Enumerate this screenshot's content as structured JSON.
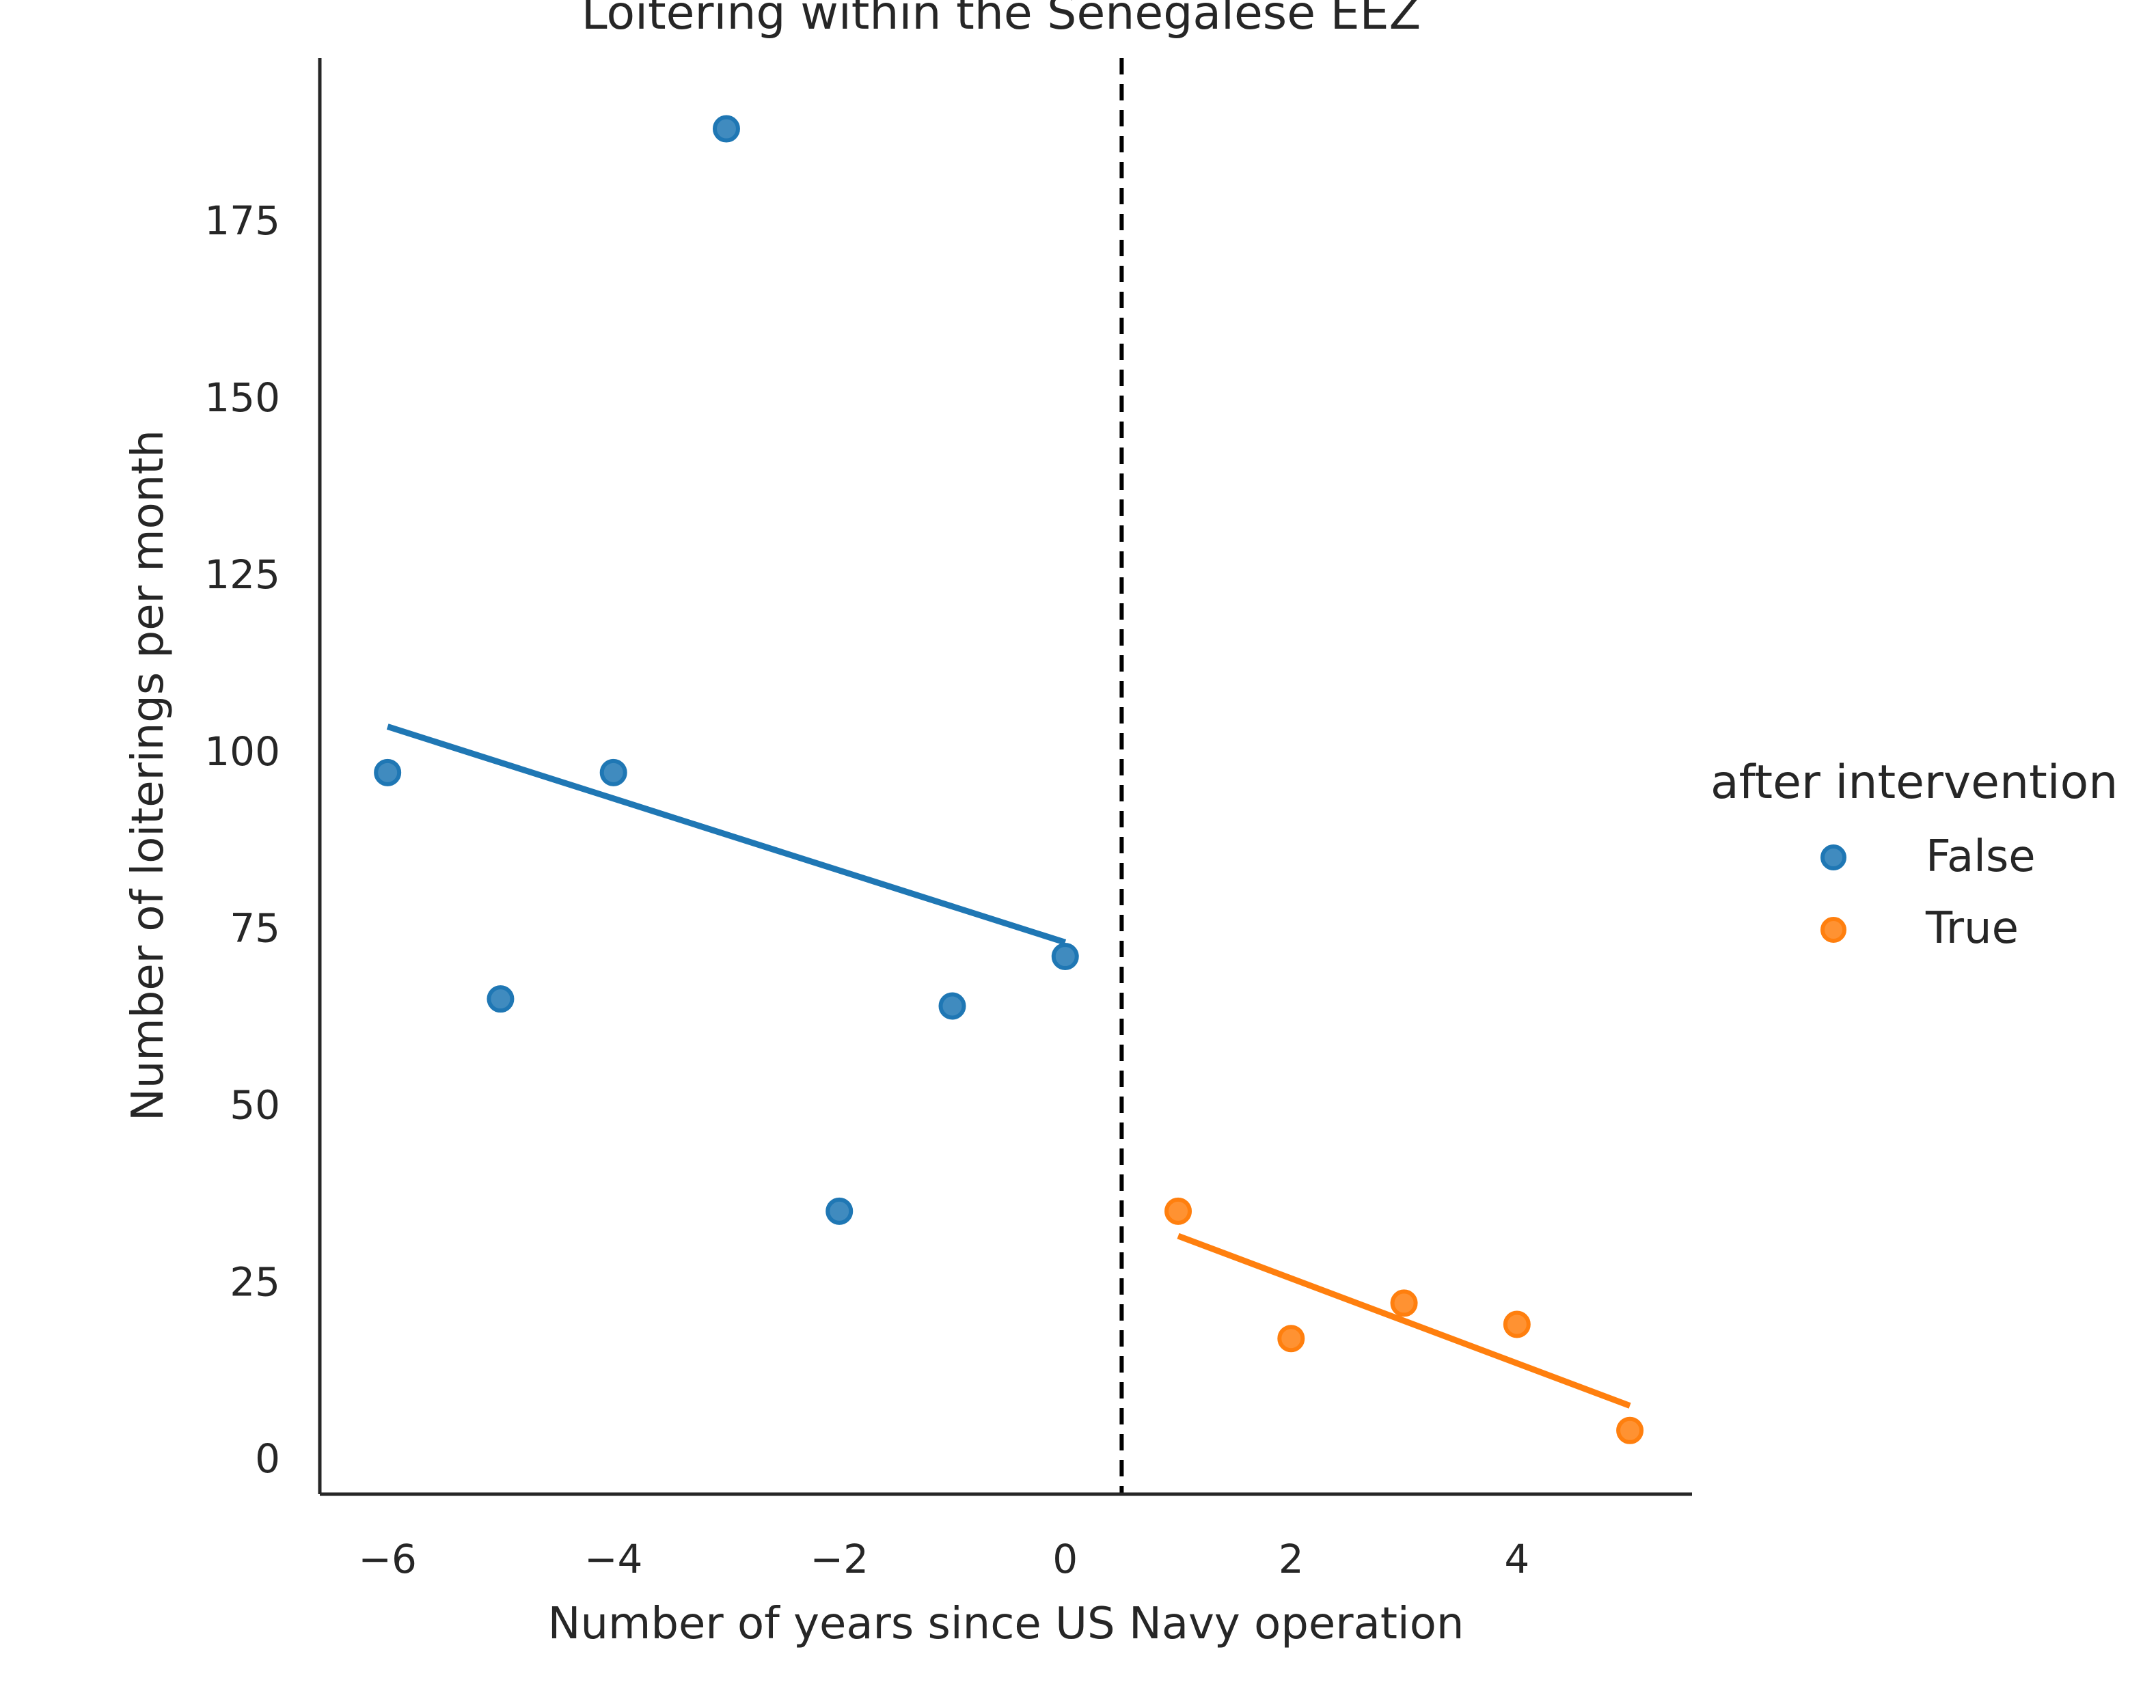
{
  "chart_data": {
    "type": "scatter",
    "title": "Loitering within the Senegalese EEZ",
    "xlabel": "Number of years since US Navy operation",
    "ylabel": "Number of loiterings per month",
    "xlim": [
      -6.6,
      5.55
    ],
    "ylim": [
      -5,
      198
    ],
    "xticks": [
      -6,
      -4,
      -2,
      0,
      2,
      4
    ],
    "xtick_labels": [
      "−6",
      "−4",
      "−2",
      "0",
      "2",
      "4"
    ],
    "yticks": [
      0,
      25,
      50,
      75,
      100,
      125,
      150,
      175
    ],
    "ytick_labels": [
      "0",
      "25",
      "50",
      "75",
      "100",
      "125",
      "150",
      "175"
    ],
    "grid": false,
    "legend": {
      "title": "after intervention",
      "position": "right",
      "entries": [
        "False",
        "True"
      ]
    },
    "vline": {
      "x": 0.5,
      "style": "dashed",
      "color": "#000000"
    },
    "series": [
      {
        "name": "False",
        "color": "#1f77b4",
        "points": [
          {
            "x": -6,
            "y": 97
          },
          {
            "x": -5,
            "y": 65
          },
          {
            "x": -4,
            "y": 97
          },
          {
            "x": -3,
            "y": 188
          },
          {
            "x": -2,
            "y": 35
          },
          {
            "x": -1,
            "y": 64
          },
          {
            "x": 0,
            "y": 71
          }
        ],
        "fit": {
          "x": [
            -6,
            0
          ],
          "y": [
            103.5,
            73
          ]
        }
      },
      {
        "name": "True",
        "color": "#ff7f0e",
        "points": [
          {
            "x": 1,
            "y": 35
          },
          {
            "x": 2,
            "y": 17
          },
          {
            "x": 3,
            "y": 22
          },
          {
            "x": 4,
            "y": 19
          },
          {
            "x": 5,
            "y": 4
          }
        ],
        "fit": {
          "x": [
            1,
            5
          ],
          "y": [
            31.5,
            7.5
          ]
        }
      }
    ]
  }
}
